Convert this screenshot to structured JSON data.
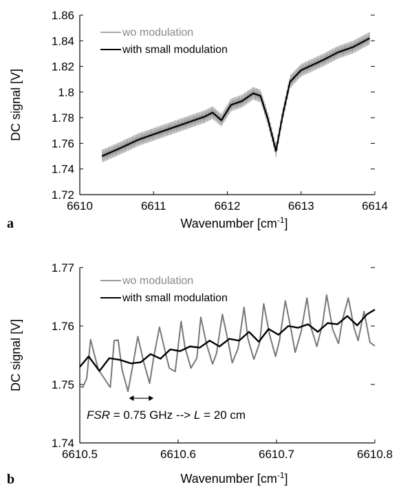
{
  "chart_data": [
    {
      "panel_label": "a",
      "type": "line",
      "xlabel": "Wavenumber [cm",
      "xlabel_sup": "-1",
      "xlabel_end": "]",
      "ylabel": "DC signal [V]",
      "xlim": [
        6610,
        6614
      ],
      "ylim": [
        1.72,
        1.86
      ],
      "xticks": [
        6610,
        6611,
        6612,
        6613,
        6614
      ],
      "xtick_labels": [
        "6610",
        "6611",
        "6612",
        "6613",
        "6614"
      ],
      "yticks": [
        1.72,
        1.74,
        1.76,
        1.78,
        1.8,
        1.82,
        1.84,
        1.86
      ],
      "ytick_labels": [
        "1.72",
        "1.74",
        "1.76",
        "1.78",
        "1.8",
        "1.82",
        "1.84",
        "1.86"
      ],
      "legend_placement": "top-left",
      "series": [
        {
          "name": "wo modulation",
          "color": "#888888",
          "ripple_amplitude": 0.005,
          "x": [
            6610.3,
            6610.5,
            6610.8,
            6611.0,
            6611.3,
            6611.5,
            6611.7,
            6611.8,
            6611.92,
            6612.05,
            6612.2,
            6612.35,
            6612.45,
            6612.55,
            6612.66,
            6612.75,
            6612.85,
            6613.0,
            6613.3,
            6613.5,
            6613.7,
            6613.93
          ],
          "y": [
            1.75,
            1.755,
            1.763,
            1.767,
            1.773,
            1.777,
            1.781,
            1.784,
            1.778,
            1.79,
            1.793,
            1.799,
            1.797,
            1.779,
            1.754,
            1.782,
            1.808,
            1.817,
            1.825,
            1.831,
            1.835,
            1.842
          ]
        },
        {
          "name": "with small modulation",
          "color": "#000000",
          "x": [
            6610.3,
            6610.5,
            6610.8,
            6611.0,
            6611.3,
            6611.5,
            6611.7,
            6611.8,
            6611.92,
            6612.05,
            6612.2,
            6612.35,
            6612.45,
            6612.55,
            6612.66,
            6612.75,
            6612.85,
            6613.0,
            6613.3,
            6613.5,
            6613.7,
            6613.93
          ],
          "y": [
            1.75,
            1.755,
            1.763,
            1.767,
            1.773,
            1.777,
            1.781,
            1.784,
            1.778,
            1.79,
            1.793,
            1.799,
            1.797,
            1.779,
            1.754,
            1.782,
            1.808,
            1.817,
            1.825,
            1.831,
            1.835,
            1.842
          ]
        }
      ]
    },
    {
      "panel_label": "b",
      "type": "line",
      "xlabel": "Wavenumber [cm",
      "xlabel_sup": "-1",
      "xlabel_end": "]",
      "ylabel": "DC signal [V]",
      "xlim": [
        6610.5,
        6610.8
      ],
      "ylim": [
        1.74,
        1.77
      ],
      "xticks": [
        6610.5,
        6610.6,
        6610.7,
        6610.8
      ],
      "xtick_labels": [
        "6610.5",
        "6610.6",
        "6610.7",
        "6610.8"
      ],
      "yticks": [
        1.74,
        1.75,
        1.76,
        1.77
      ],
      "ytick_labels": [
        "1.74",
        "1.75",
        "1.76",
        "1.77"
      ],
      "legend_placement": "top-left",
      "annotation": {
        "fsr_label": "FSR",
        "fsr_value": " = 0.75 GHz  --> ",
        "l_label": "L",
        "l_value": " = 20 cm",
        "arrow_x": [
          6610.55,
          6610.575
        ],
        "arrow_y": 1.7487
      },
      "series": [
        {
          "name": "wo modulation",
          "color": "#777777",
          "x": [
            6610.5,
            6610.503,
            6610.507,
            6610.511,
            6610.515,
            6610.519,
            6610.525,
            6610.531,
            6610.535,
            6610.539,
            6610.543,
            6610.549,
            6610.555,
            6610.559,
            6610.565,
            6610.571,
            6610.575,
            6610.581,
            6610.587,
            6610.591,
            6610.597,
            6610.603,
            6610.607,
            6610.613,
            6610.619,
            6610.623,
            6610.629,
            6610.635,
            6610.639,
            6610.645,
            6610.651,
            6610.655,
            6610.661,
            6610.667,
            6610.671,
            6610.677,
            6610.683,
            6610.687,
            6610.693,
            6610.699,
            6610.703,
            6610.709,
            6610.715,
            6610.719,
            6610.725,
            6610.731,
            6610.735,
            6610.741,
            6610.747,
            6610.751,
            6610.757,
            6610.763,
            6610.767,
            6610.773,
            6610.779,
            6610.783,
            6610.789,
            6610.795,
            6610.8
          ],
          "y": [
            1.7497,
            1.7495,
            1.751,
            1.7577,
            1.755,
            1.7525,
            1.751,
            1.7495,
            1.7575,
            1.7576,
            1.7525,
            1.7488,
            1.7543,
            1.7582,
            1.7538,
            1.7502,
            1.7545,
            1.7598,
            1.7555,
            1.7528,
            1.7522,
            1.7608,
            1.7563,
            1.7528,
            1.7545,
            1.7615,
            1.7568,
            1.7535,
            1.7553,
            1.762,
            1.7572,
            1.7537,
            1.7562,
            1.7632,
            1.7578,
            1.7543,
            1.7572,
            1.7638,
            1.7585,
            1.7548,
            1.7575,
            1.7643,
            1.7592,
            1.7555,
            1.759,
            1.7648,
            1.7598,
            1.7565,
            1.7605,
            1.7653,
            1.7595,
            1.757,
            1.761,
            1.7648,
            1.7596,
            1.7575,
            1.7625,
            1.7572,
            1.7566
          ]
        },
        {
          "name": "with small modulation",
          "color": "#000000",
          "x": [
            6610.5,
            6610.509,
            6610.52,
            6610.53,
            6610.541,
            6610.552,
            6610.562,
            6610.572,
            6610.582,
            6610.592,
            6610.602,
            6610.612,
            6610.622,
            6610.632,
            6610.642,
            6610.652,
            6610.662,
            6610.672,
            6610.682,
            6610.692,
            6610.702,
            6610.712,
            6610.722,
            6610.732,
            6610.742,
            6610.752,
            6610.762,
            6610.772,
            6610.782,
            6610.792,
            6610.8
          ],
          "y": [
            1.753,
            1.7548,
            1.7523,
            1.7545,
            1.7542,
            1.7536,
            1.7538,
            1.7552,
            1.7544,
            1.756,
            1.7557,
            1.7565,
            1.7563,
            1.7575,
            1.7565,
            1.7578,
            1.7575,
            1.759,
            1.7573,
            1.7595,
            1.7585,
            1.76,
            1.7597,
            1.7603,
            1.759,
            1.7605,
            1.7603,
            1.7617,
            1.7601,
            1.762,
            1.7628
          ]
        }
      ]
    }
  ]
}
